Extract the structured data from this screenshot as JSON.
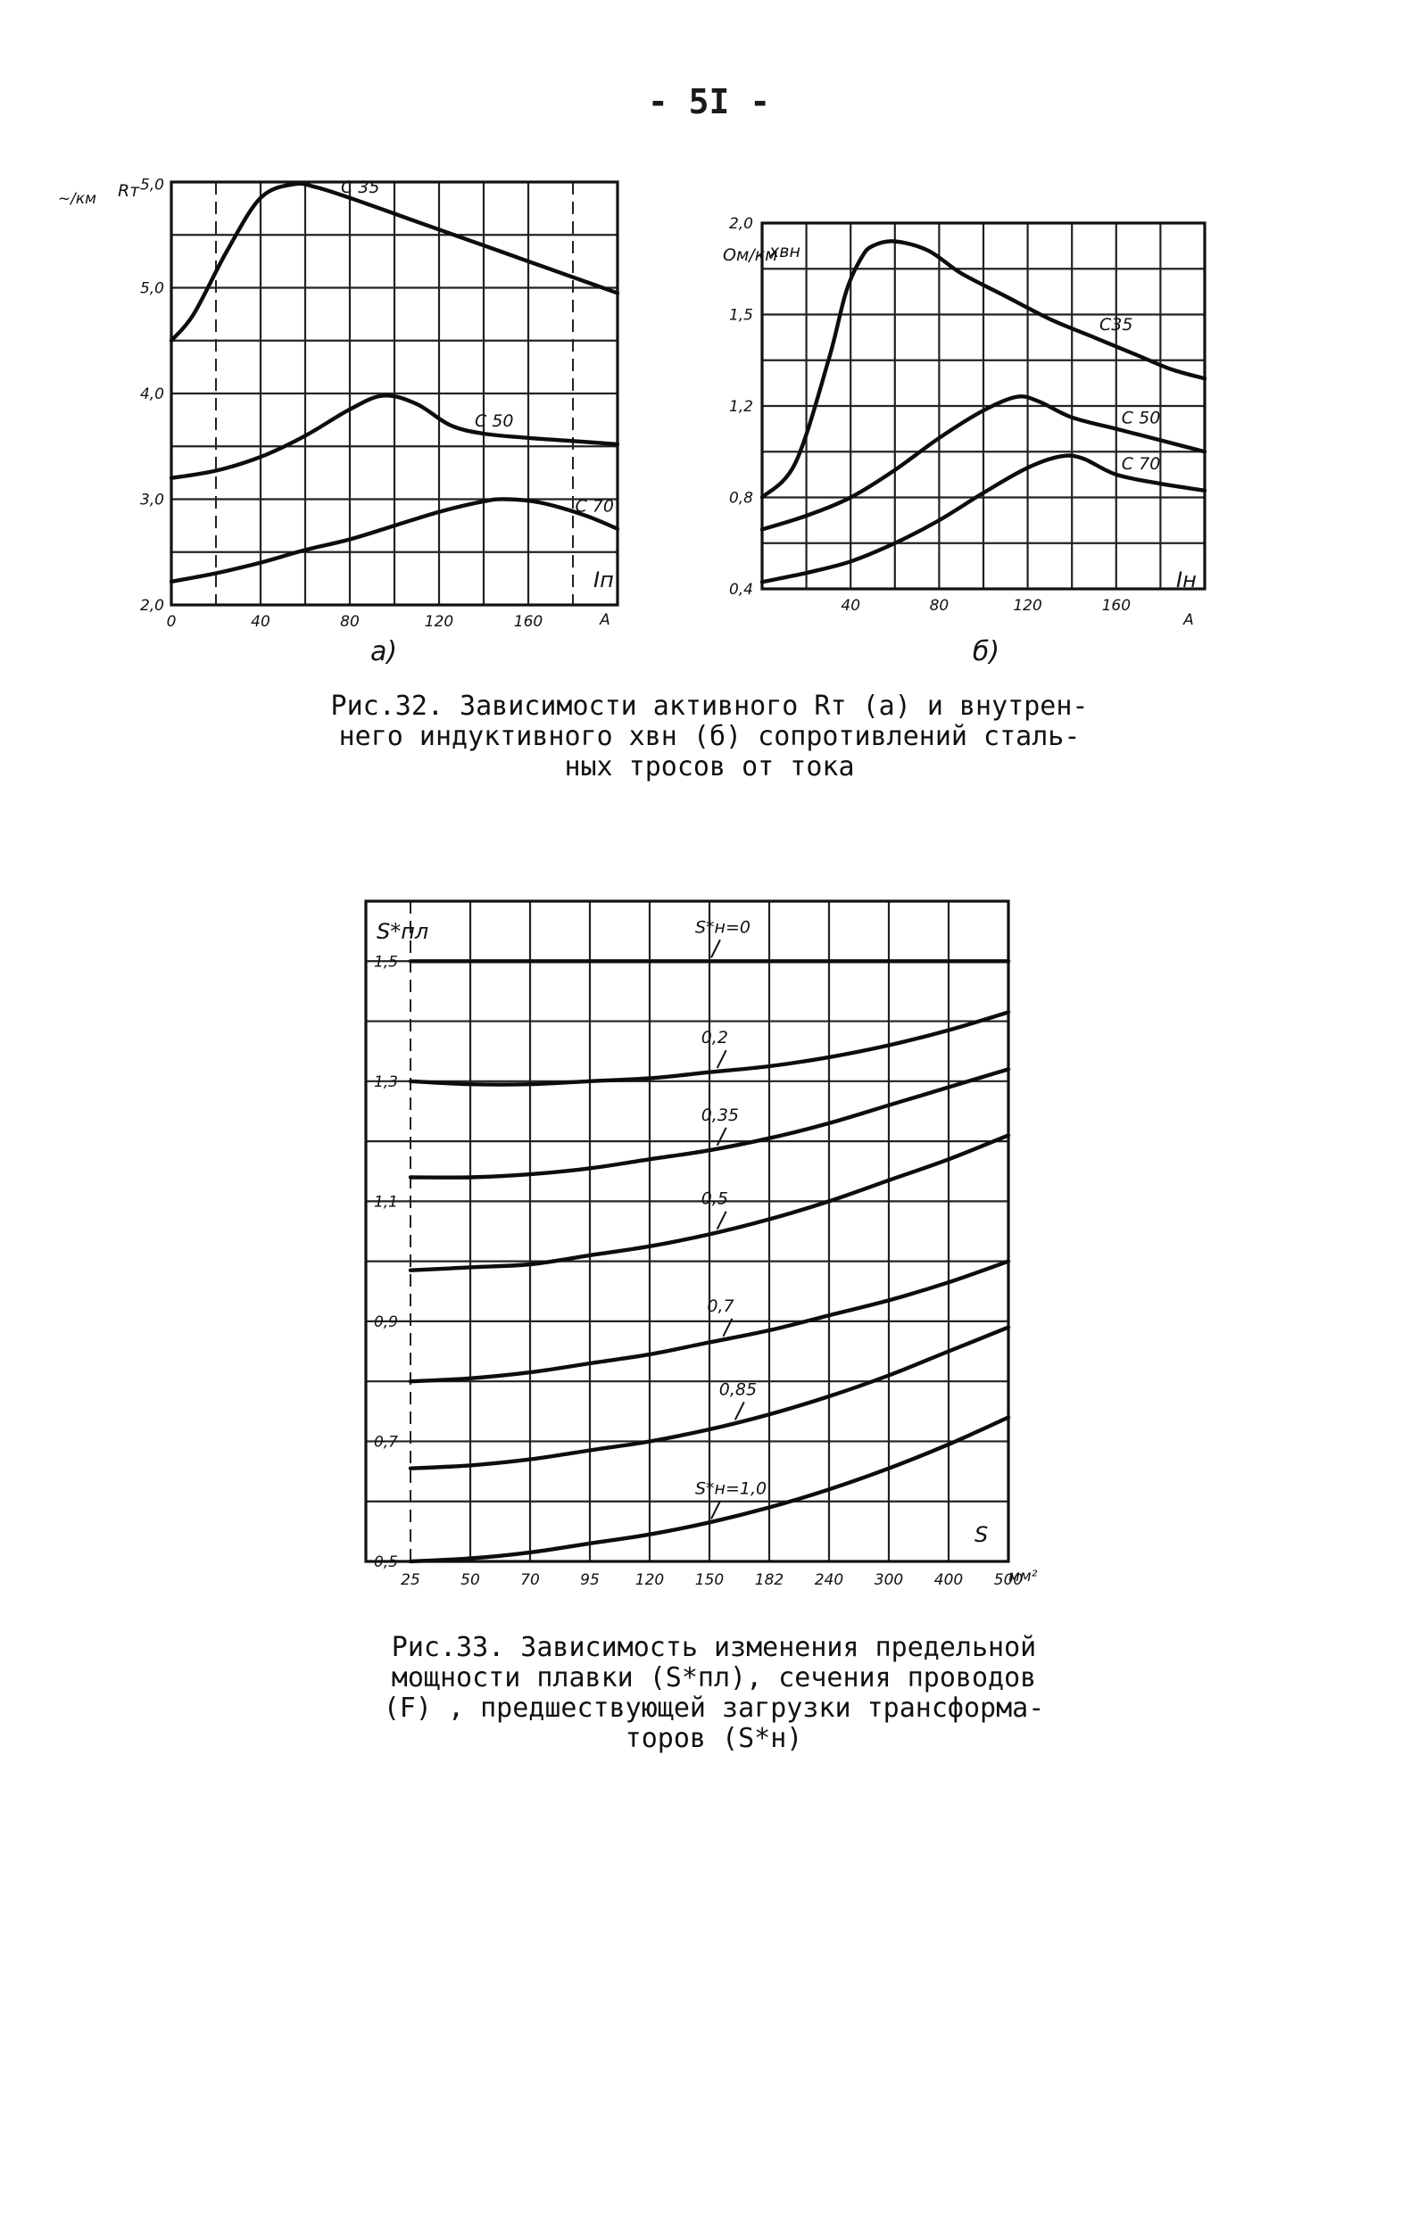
{
  "page_number": "- 5I -",
  "chart_data": [
    {
      "type": "line",
      "panel": "а)",
      "y_unit": "~/км",
      "y_symbol": "Rт",
      "x_symbol": "Iп",
      "x_unit": "А",
      "x_ticks": [
        "0",
        "40",
        "80",
        "120",
        "160"
      ],
      "y_ticks": [
        "5,0",
        "5,0",
        "4,0",
        "3,0",
        "2,0"
      ],
      "xlim": [
        0,
        200
      ],
      "ylim": [
        2.0,
        6.0
      ],
      "series": [
        {
          "name": "С 35",
          "x": [
            0,
            10,
            25,
            40,
            55,
            65,
            80,
            100,
            120,
            140,
            160,
            180,
            200
          ],
          "y": [
            4.5,
            4.75,
            5.35,
            5.85,
            5.98,
            5.95,
            5.85,
            5.7,
            5.55,
            5.4,
            5.25,
            5.1,
            4.95
          ]
        },
        {
          "name": "С 50",
          "x": [
            0,
            20,
            40,
            60,
            80,
            95,
            110,
            125,
            140,
            160,
            180,
            200
          ],
          "y": [
            3.2,
            3.27,
            3.4,
            3.6,
            3.85,
            3.98,
            3.9,
            3.7,
            3.62,
            3.58,
            3.55,
            3.52
          ]
        },
        {
          "name": "С 70",
          "x": [
            0,
            20,
            40,
            60,
            80,
            100,
            120,
            140,
            150,
            165,
            185,
            200
          ],
          "y": [
            2.22,
            2.3,
            2.4,
            2.52,
            2.62,
            2.75,
            2.88,
            2.98,
            3.0,
            2.97,
            2.85,
            2.72
          ]
        }
      ]
    },
    {
      "type": "line",
      "panel": "б)",
      "y_unit": "Ом/км",
      "y_symbol": "хвн",
      "x_symbol": "Iн",
      "x_unit": "А",
      "x_ticks": [
        "40",
        "80",
        "120",
        "160"
      ],
      "y_ticks": [
        "2,0",
        "1,5",
        "1,2",
        "0,8",
        "0,4"
      ],
      "xlim": [
        0,
        200
      ],
      "ylim": [
        0.4,
        2.0
      ],
      "series": [
        {
          "name": "С35",
          "x": [
            0,
            15,
            30,
            38,
            45,
            50,
            60,
            75,
            90,
            110,
            130,
            150,
            170,
            185,
            200
          ],
          "y": [
            0.8,
            0.95,
            1.4,
            1.7,
            1.85,
            1.9,
            1.92,
            1.88,
            1.78,
            1.68,
            1.58,
            1.5,
            1.42,
            1.36,
            1.32
          ]
        },
        {
          "name": "С 50",
          "x": [
            0,
            20,
            40,
            60,
            80,
            100,
            115,
            125,
            140,
            160,
            180,
            200
          ],
          "y": [
            0.66,
            0.72,
            0.8,
            0.92,
            1.06,
            1.18,
            1.24,
            1.22,
            1.15,
            1.1,
            1.05,
            1.0
          ]
        },
        {
          "name": "С 70",
          "x": [
            0,
            20,
            40,
            60,
            80,
            100,
            120,
            135,
            145,
            160,
            180,
            200
          ],
          "y": [
            0.43,
            0.47,
            0.52,
            0.6,
            0.7,
            0.82,
            0.93,
            0.98,
            0.97,
            0.9,
            0.86,
            0.83
          ]
        }
      ]
    },
    {
      "type": "line",
      "y_symbol": "S*пл",
      "x_symbol": "S",
      "x_unit": "мм²",
      "x_ticks": [
        "25",
        "50",
        "70",
        "95",
        "120",
        "150",
        "182",
        "240",
        "300",
        "400",
        "500"
      ],
      "y_ticks": [
        "1,5",
        "1,3",
        "1,1",
        "0,9",
        "0,7",
        "0,5"
      ],
      "xlim_index": [
        0,
        10
      ],
      "ylim": [
        0.5,
        1.6
      ],
      "series": [
        {
          "name": "S*н=0",
          "x": [
            0,
            10
          ],
          "y": [
            1.5,
            1.5
          ]
        },
        {
          "name": "0,2",
          "x": [
            0,
            1,
            2,
            3,
            4,
            5,
            6,
            7,
            8,
            9,
            10
          ],
          "y": [
            1.3,
            1.295,
            1.295,
            1.3,
            1.305,
            1.315,
            1.325,
            1.34,
            1.36,
            1.385,
            1.415
          ]
        },
        {
          "name": "0,35",
          "x": [
            0,
            1,
            2,
            3,
            4,
            5,
            6,
            7,
            8,
            9,
            10
          ],
          "y": [
            1.14,
            1.14,
            1.145,
            1.155,
            1.17,
            1.185,
            1.205,
            1.23,
            1.26,
            1.29,
            1.32
          ]
        },
        {
          "name": "0,5",
          "x": [
            0,
            1,
            2,
            3,
            4,
            5,
            6,
            7,
            8,
            9,
            10
          ],
          "y": [
            0.985,
            0.99,
            0.995,
            1.01,
            1.025,
            1.045,
            1.07,
            1.1,
            1.135,
            1.17,
            1.21
          ]
        },
        {
          "name": "0,7",
          "x": [
            0,
            1,
            2,
            3,
            4,
            5,
            6,
            7,
            8,
            9,
            10
          ],
          "y": [
            0.8,
            0.805,
            0.815,
            0.83,
            0.845,
            0.865,
            0.885,
            0.91,
            0.935,
            0.965,
            1.0
          ]
        },
        {
          "name": "0,85",
          "x": [
            0,
            1,
            2,
            3,
            4,
            5,
            6,
            7,
            8,
            9,
            10
          ],
          "y": [
            0.655,
            0.66,
            0.67,
            0.685,
            0.7,
            0.72,
            0.745,
            0.775,
            0.81,
            0.85,
            0.89
          ]
        },
        {
          "name": "S*н=1,0",
          "x": [
            0,
            1,
            2,
            3,
            4,
            5,
            6,
            7,
            8,
            9,
            10
          ],
          "y": [
            0.5,
            0.505,
            0.515,
            0.53,
            0.545,
            0.565,
            0.59,
            0.62,
            0.655,
            0.695,
            0.74
          ]
        }
      ]
    }
  ],
  "captions": {
    "fig32": [
      "Рис.32. Зависимости активного Rт (а) и внутрен-",
      "него индуктивного хвн (б) сопротивлений сталь-",
      "ных тросов от тока"
    ],
    "fig33": [
      "Рис.33. Зависимость изменения предельной",
      "мощности плавки (S*пл), сечения проводов",
      "(F) , предшествующей загрузки трансформа-",
      "торов (S*н)"
    ]
  }
}
